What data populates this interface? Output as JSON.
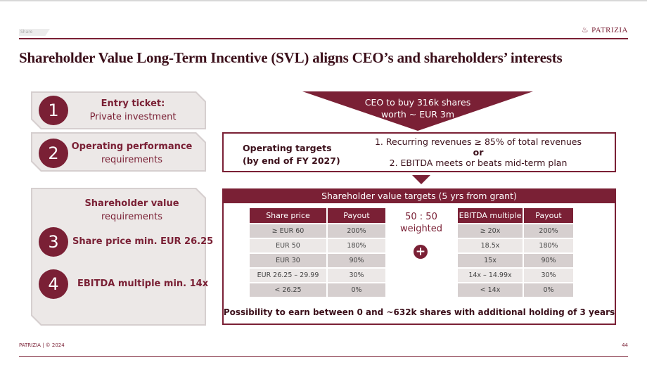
{
  "header": {
    "section_tab": "Share",
    "logo": "PATRIZIA",
    "title": "Shareholder Value Long-Term Incentive (SVL) aligns CEO’s and shareholders’ interests"
  },
  "left": {
    "p1": {
      "num": "1",
      "title": "Entry ticket:",
      "sub": "Private investment"
    },
    "p2": {
      "num": "2",
      "title": "Operating performance",
      "sub": "requirements"
    },
    "p3": {
      "title": "Shareholder value",
      "sub": "requirements",
      "item3_num": "3",
      "item3": "Share price min. EUR 26.25",
      "item4_num": "4",
      "item4": "EBITDA multiple min. 14x"
    }
  },
  "ceo": {
    "line1": "CEO to buy 316k shares",
    "line2": "worth ~ EUR 3m"
  },
  "operating": {
    "label1": "Operating targets",
    "label2": "(by end of FY 2027)",
    "t1": "1. Recurring revenues ≥ 85% of total revenues",
    "or": "or",
    "t2": "2. EBITDA meets or beats mid-term plan"
  },
  "sv": {
    "header": "Shareholder value targets (5 yrs from grant)",
    "weight1": "50 : 50",
    "weight2": "weighted",
    "share_table": {
      "headers": [
        "Share price",
        "Payout"
      ],
      "rows": [
        [
          "≥ EUR 60",
          "200%"
        ],
        [
          "EUR 50",
          "180%"
        ],
        [
          "EUR 30",
          "90%"
        ],
        [
          "EUR 26.25 – 29.99",
          "30%"
        ],
        [
          "< 26.25",
          "0%"
        ]
      ]
    },
    "ebitda_table": {
      "headers": [
        "EBITDA multiple",
        "Payout"
      ],
      "rows": [
        [
          "≥ 20x",
          "200%"
        ],
        [
          "18.5x",
          "180%"
        ],
        [
          "15x",
          "90%"
        ],
        [
          "14x – 14.99x",
          "30%"
        ],
        [
          "< 14x",
          "0%"
        ]
      ]
    },
    "footnote": "Possibility to earn between 0 and ~632k shares with additional holding of 3 years"
  },
  "footer": {
    "text": "PATRIZIA | © 2024",
    "page": "44"
  },
  "colors": {
    "brand": "#7a2035"
  }
}
